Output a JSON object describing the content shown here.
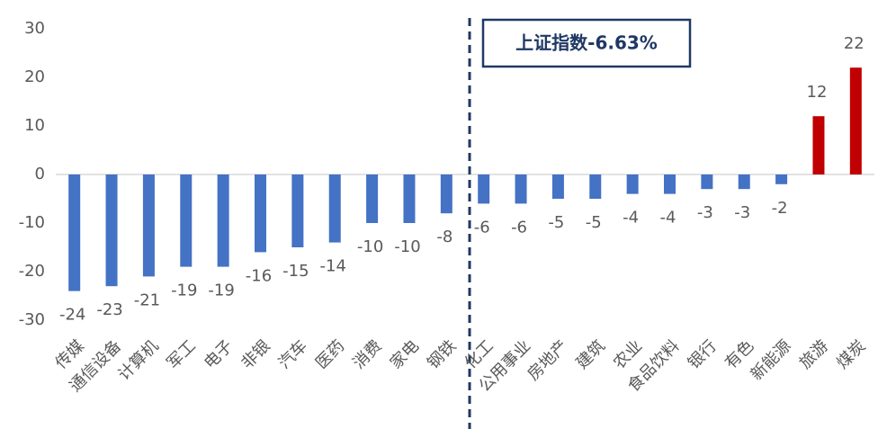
{
  "chart_data": {
    "type": "bar",
    "categories": [
      "传媒",
      "通信设备",
      "计算机",
      "军工",
      "电子",
      "非银",
      "汽车",
      "医药",
      "消费",
      "家电",
      "钢铁",
      "化工",
      "公用事业",
      "房地产",
      "建筑",
      "农业",
      "食品饮料",
      "银行",
      "有色",
      "新能源",
      "旅游",
      "煤炭"
    ],
    "values": [
      -24,
      -23,
      -21,
      -19,
      -19,
      -16,
      -15,
      -14,
      -10,
      -10,
      -8,
      -6,
      -6,
      -5,
      -5,
      -4,
      -4,
      -3,
      -3,
      -2,
      12,
      22
    ],
    "colors": [
      "#4472c4",
      "#4472c4",
      "#4472c4",
      "#4472c4",
      "#4472c4",
      "#4472c4",
      "#4472c4",
      "#4472c4",
      "#4472c4",
      "#4472c4",
      "#4472c4",
      "#4472c4",
      "#4472c4",
      "#4472c4",
      "#4472c4",
      "#4472c4",
      "#4472c4",
      "#4472c4",
      "#4472c4",
      "#4472c4",
      "#c00000",
      "#c00000"
    ],
    "ylim": [
      -30,
      30
    ],
    "yticks": [
      -30,
      -20,
      -10,
      0,
      10,
      20,
      30
    ],
    "grid": false,
    "annotation": "上证指数-6.63%"
  }
}
